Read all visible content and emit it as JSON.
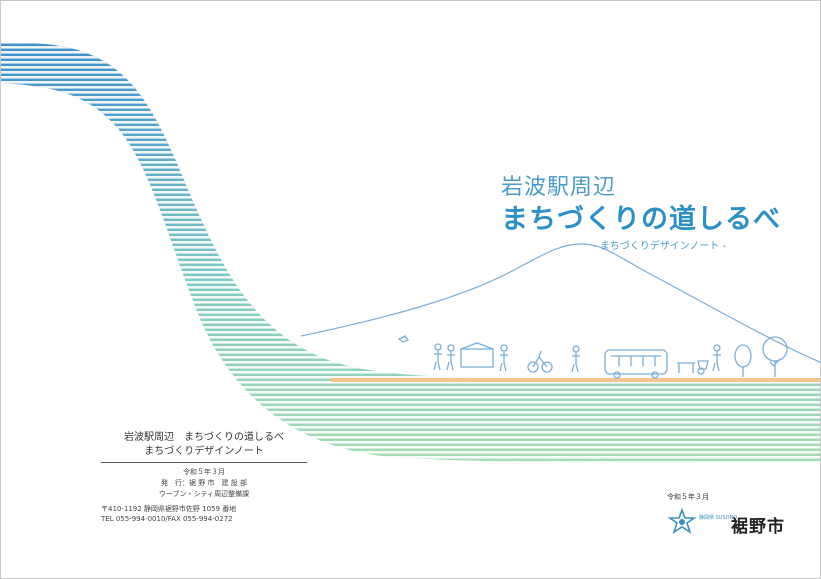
{
  "cover": {
    "subtitle": "岩波駅周辺",
    "title": "まちづくりの道しるべ",
    "tagline": "- まちづくりデザインノート -"
  },
  "colophon": {
    "title_line1": "岩波駅周辺　まちづくりの道しるべ",
    "title_line2": "まちづくりデザインノート",
    "date": "令和５年３月",
    "publisher": "発　行：裾 野 市　建 設 部",
    "office": "ウーブン・シティ周辺整備課",
    "address": "〒410-1192 静岡県裾野市佐野 1059 番地",
    "tel_fax": "TEL 055-994-0010/FAX 055-994-0272"
  },
  "footer": {
    "date": "令和５年３月",
    "city_name": "裾野市",
    "logo_text": "静岡県 SUSONO",
    "logo_icon": "star-logo-icon"
  },
  "colors": {
    "blue": "#3f8fcb",
    "green": "#9ad6b4",
    "ground": "#f3c48f",
    "mountain": "#7aaed8"
  }
}
